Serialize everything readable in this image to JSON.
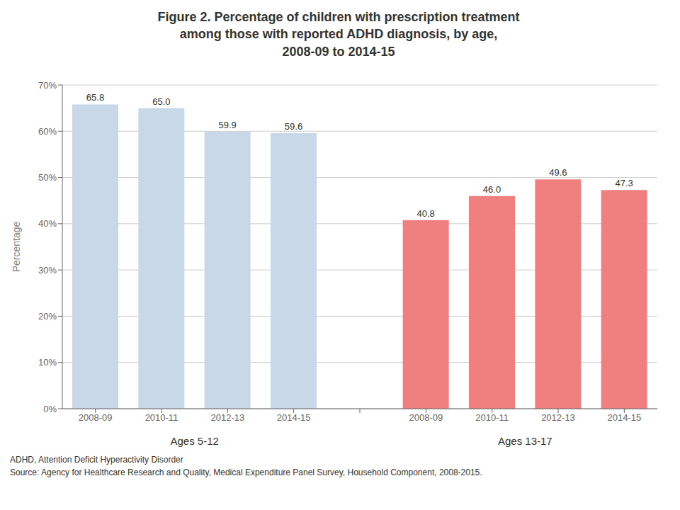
{
  "chart_data": {
    "type": "bar",
    "title": "Figure 2. Percentage of children with prescription treatment\namong those with reported ADHD diagnosis, by age,\n2008-09 to 2014-15",
    "ylabel": "Percentage",
    "categories": [
      "2008-09",
      "2010-11",
      "2012-13",
      "2014-15",
      "2008-09",
      "2010-11",
      "2012-13",
      "2014-15"
    ],
    "series": [
      {
        "name": "Ages 5-12",
        "color": "#c8d8e8",
        "values": [
          65.8,
          65.0,
          59.9,
          59.6,
          null,
          null,
          null,
          null
        ],
        "value_labels": [
          "65.8",
          "65.0",
          "59.9",
          "59.6",
          null,
          null,
          null,
          null
        ]
      },
      {
        "name": "Ages 13-17",
        "color": "#f08080",
        "values": [
          null,
          null,
          null,
          null,
          40.8,
          46.0,
          49.6,
          47.3
        ],
        "value_labels": [
          null,
          null,
          null,
          null,
          "40.8",
          "46.0",
          "49.6",
          "47.3"
        ]
      }
    ],
    "ylim": [
      0,
      70
    ],
    "yticks": [
      {
        "value": 0,
        "label": "0%"
      },
      {
        "value": 10,
        "label": "10%"
      },
      {
        "value": 20,
        "label": "20%"
      },
      {
        "value": 30,
        "label": "30%"
      },
      {
        "value": 40,
        "label": "40%"
      },
      {
        "value": 50,
        "label": "50%"
      },
      {
        "value": 60,
        "label": "60%"
      },
      {
        "value": 70,
        "label": "70%"
      }
    ],
    "grid": true,
    "data_labels": true,
    "annotations": [
      "ADHD, Attention Deficit Hyperactivity Disorder",
      "Source: Agency for Healthcare Research and Quality, Medical Expenditure Panel Survey, Household Component, 2008-2015."
    ]
  }
}
